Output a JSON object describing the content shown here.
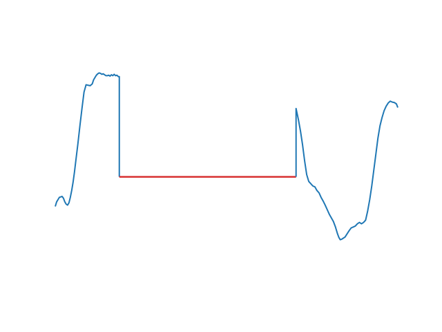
{
  "chart_data": {
    "type": "line",
    "title": "",
    "xlabel": "",
    "ylabel": "",
    "axes_visible": false,
    "grid": false,
    "legend": "none",
    "xlim": [
      0,
      100
    ],
    "ylim": [
      -2.6,
      3.0
    ],
    "series": [
      {
        "color": "#1f77b4",
        "segment": "left",
        "x": [
          0.0,
          0.4,
          0.8,
          1.2,
          1.6,
          2.0,
          2.4,
          2.8,
          3.2,
          3.6,
          4.0,
          4.4,
          4.8,
          5.2,
          5.6,
          6.0,
          6.6,
          7.2,
          7.8,
          8.4,
          9.0,
          9.6,
          10.2,
          10.8,
          11.2,
          11.6,
          12.0,
          12.4,
          12.8,
          13.2,
          13.6,
          14.0,
          14.4,
          14.8,
          15.2,
          15.6,
          16.0,
          16.4,
          16.8,
          17.2,
          17.6,
          18.0,
          18.4,
          18.7,
          18.7
        ],
        "y": [
          -0.65,
          -0.55,
          -0.5,
          -0.45,
          -0.44,
          -0.43,
          -0.47,
          -0.55,
          -0.6,
          -0.62,
          -0.57,
          -0.45,
          -0.3,
          -0.12,
          0.1,
          0.35,
          0.72,
          1.12,
          1.5,
          1.86,
          2.02,
          2.01,
          2.0,
          2.04,
          2.13,
          2.18,
          2.23,
          2.26,
          2.28,
          2.27,
          2.25,
          2.26,
          2.24,
          2.22,
          2.22,
          2.23,
          2.21,
          2.24,
          2.22,
          2.25,
          2.22,
          2.23,
          2.2,
          2.2,
          0.0
        ]
      },
      {
        "color": "#d62728",
        "segment": "gap",
        "x": [
          18.7,
          70.3
        ],
        "y": [
          0.0,
          0.0
        ]
      },
      {
        "color": "#1f77b4",
        "segment": "right",
        "x": [
          70.3,
          70.3,
          71.0,
          71.6,
          72.2,
          72.8,
          73.4,
          74.0,
          74.6,
          75.2,
          75.8,
          76.4,
          77.0,
          77.6,
          78.2,
          78.8,
          79.4,
          80.0,
          80.6,
          81.2,
          81.8,
          82.4,
          82.8,
          83.2,
          83.6,
          84.0,
          84.6,
          85.2,
          85.8,
          86.4,
          87.0,
          87.6,
          88.2,
          88.8,
          89.4,
          90.0,
          90.6,
          91.2,
          91.8,
          92.4,
          93.0,
          93.6,
          94.2,
          94.8,
          95.4,
          96.0,
          96.6,
          97.2,
          97.8,
          98.4,
          99.0,
          99.6,
          100.0
        ],
        "y": [
          0.0,
          1.5,
          1.25,
          1.0,
          0.7,
          0.35,
          0.05,
          -0.1,
          -0.15,
          -0.2,
          -0.22,
          -0.3,
          -0.35,
          -0.45,
          -0.53,
          -0.62,
          -0.72,
          -0.82,
          -0.9,
          -0.98,
          -1.1,
          -1.25,
          -1.33,
          -1.38,
          -1.37,
          -1.35,
          -1.32,
          -1.25,
          -1.18,
          -1.12,
          -1.1,
          -1.08,
          -1.03,
          -1.0,
          -1.03,
          -1.0,
          -0.95,
          -0.75,
          -0.5,
          -0.2,
          0.15,
          0.5,
          0.85,
          1.12,
          1.3,
          1.45,
          1.55,
          1.62,
          1.66,
          1.64,
          1.63,
          1.6,
          1.52
        ]
      }
    ]
  }
}
